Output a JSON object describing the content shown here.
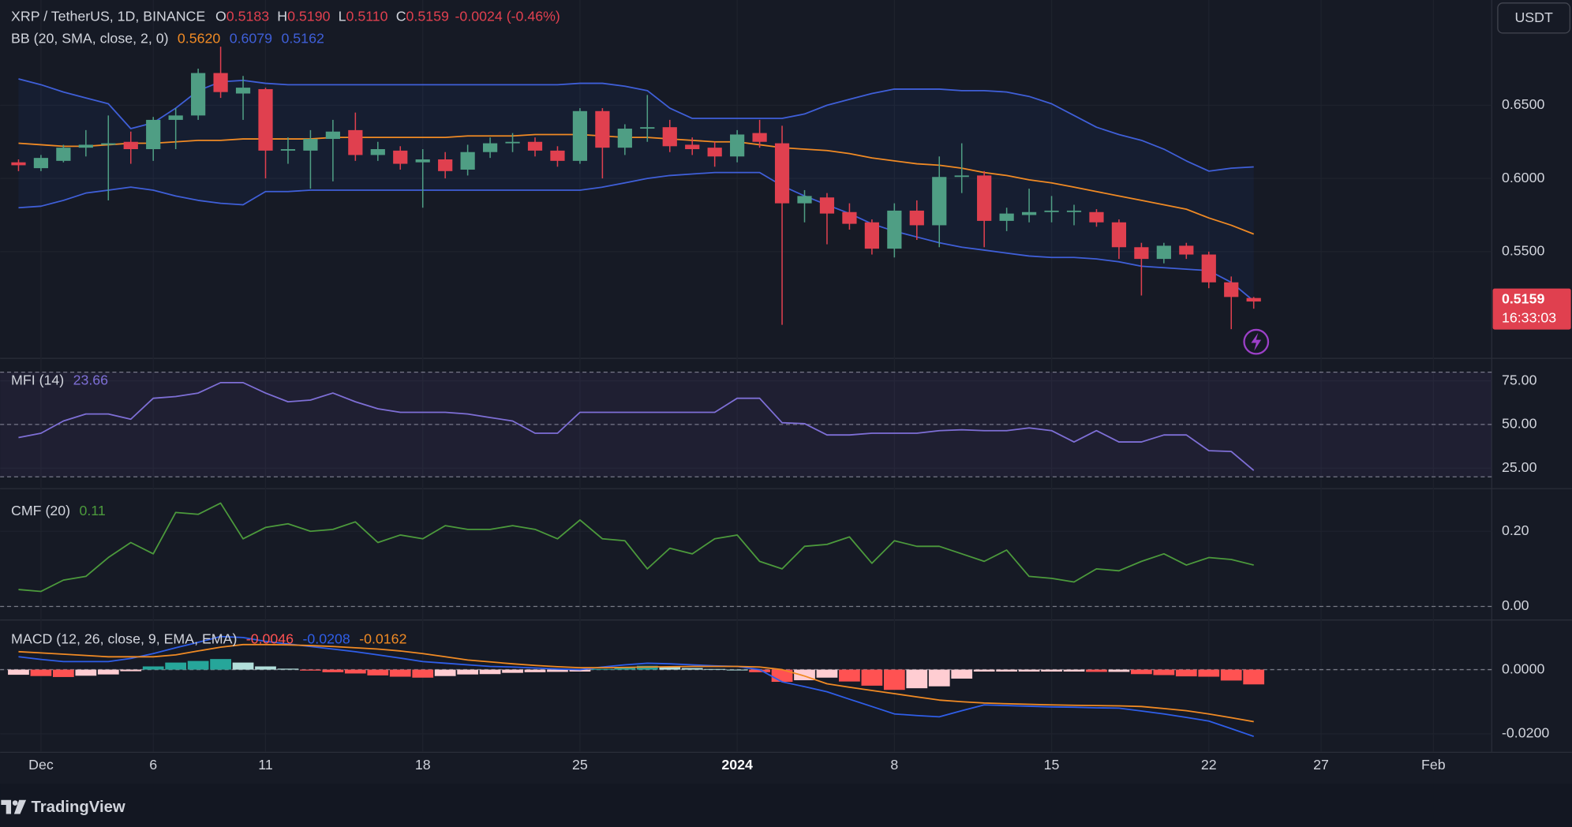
{
  "chart_data": [
    {
      "type": "candlestick",
      "title": "XRP / TetherUS, 1D, BINANCE",
      "legend": [
        {
          "key": "O",
          "value": "0.5183"
        },
        {
          "key": "H",
          "value": "0.5190"
        },
        {
          "key": "L",
          "value": "0.5110"
        },
        {
          "key": "C",
          "value": "0.5159"
        }
      ],
      "change": "-0.0024 (-0.46%)",
      "currency": "USDT",
      "countdown": "16:33:03",
      "up_color": "#4f9e84",
      "down_color": "#e0404f",
      "x": [
        "2023-11-30",
        "2023-12-01",
        "2023-12-02",
        "2023-12-03",
        "2023-12-04",
        "2023-12-05",
        "2023-12-06",
        "2023-12-07",
        "2023-12-08",
        "2023-12-09",
        "2023-12-10",
        "2023-12-11",
        "2023-12-12",
        "2023-12-13",
        "2023-12-14",
        "2023-12-15",
        "2023-12-16",
        "2023-12-17",
        "2023-12-18",
        "2023-12-19",
        "2023-12-20",
        "2023-12-21",
        "2023-12-22",
        "2023-12-23",
        "2023-12-24",
        "2023-12-25",
        "2023-12-26",
        "2023-12-27",
        "2023-12-28",
        "2023-12-29",
        "2023-12-30",
        "2023-12-31",
        "2024-01-01",
        "2024-01-02",
        "2024-01-03",
        "2024-01-04",
        "2024-01-05",
        "2024-01-06",
        "2024-01-07",
        "2024-01-08",
        "2024-01-09",
        "2024-01-10",
        "2024-01-11",
        "2024-01-12",
        "2024-01-13",
        "2024-01-14",
        "2024-01-15",
        "2024-01-16",
        "2024-01-17",
        "2024-01-18",
        "2024-01-19",
        "2024-01-20",
        "2024-01-21",
        "2024-01-22",
        "2024-01-23",
        "2024-01-24"
      ],
      "open": [
        0.611,
        0.607,
        0.612,
        0.621,
        0.623,
        0.625,
        0.62,
        0.64,
        0.643,
        0.672,
        0.658,
        0.661,
        0.619,
        0.619,
        0.627,
        0.633,
        0.616,
        0.619,
        0.611,
        0.613,
        0.606,
        0.618,
        0.624,
        0.625,
        0.619,
        0.612,
        0.646,
        0.621,
        0.634,
        0.635,
        0.623,
        0.621,
        0.615,
        0.631,
        0.624,
        0.583,
        0.587,
        0.577,
        0.57,
        0.552,
        0.578,
        0.568,
        0.601,
        0.602,
        0.571,
        0.575,
        0.577,
        0.577,
        0.577,
        0.57,
        0.553,
        0.545,
        0.554,
        0.548,
        0.529,
        0.5183
      ],
      "high": [
        0.613,
        0.616,
        0.623,
        0.633,
        0.643,
        0.632,
        0.642,
        0.648,
        0.675,
        0.69,
        0.67,
        0.662,
        0.628,
        0.633,
        0.64,
        0.645,
        0.625,
        0.622,
        0.62,
        0.618,
        0.623,
        0.628,
        0.631,
        0.628,
        0.622,
        0.648,
        0.648,
        0.637,
        0.657,
        0.64,
        0.628,
        0.625,
        0.633,
        0.64,
        0.636,
        0.592,
        0.59,
        0.583,
        0.572,
        0.583,
        0.585,
        0.615,
        0.624,
        0.605,
        0.58,
        0.593,
        0.588,
        0.582,
        0.579,
        0.572,
        0.556,
        0.556,
        0.556,
        0.55,
        0.533,
        0.519
      ],
      "low": [
        0.605,
        0.605,
        0.611,
        0.615,
        0.585,
        0.61,
        0.612,
        0.62,
        0.64,
        0.655,
        0.64,
        0.6,
        0.61,
        0.593,
        0.598,
        0.612,
        0.612,
        0.606,
        0.58,
        0.6,
        0.602,
        0.614,
        0.618,
        0.615,
        0.608,
        0.61,
        0.6,
        0.616,
        0.625,
        0.618,
        0.616,
        0.608,
        0.611,
        0.621,
        0.5,
        0.57,
        0.555,
        0.565,
        0.548,
        0.546,
        0.558,
        0.553,
        0.59,
        0.553,
        0.564,
        0.57,
        0.57,
        0.568,
        0.567,
        0.545,
        0.52,
        0.542,
        0.545,
        0.525,
        0.497,
        0.511
      ],
      "close": [
        0.609,
        0.614,
        0.621,
        0.623,
        0.624,
        0.62,
        0.64,
        0.643,
        0.672,
        0.659,
        0.662,
        0.619,
        0.62,
        0.627,
        0.632,
        0.616,
        0.62,
        0.61,
        0.613,
        0.605,
        0.618,
        0.624,
        0.625,
        0.619,
        0.612,
        0.646,
        0.621,
        0.634,
        0.635,
        0.622,
        0.62,
        0.615,
        0.63,
        0.625,
        0.583,
        0.588,
        0.576,
        0.569,
        0.552,
        0.578,
        0.568,
        0.601,
        0.602,
        0.571,
        0.576,
        0.577,
        0.578,
        0.578,
        0.57,
        0.553,
        0.545,
        0.554,
        0.548,
        0.529,
        0.519,
        0.5159
      ],
      "overlay": {
        "label": "BB (20, SMA, close, 2, 0)",
        "fill": "#2962ff",
        "series": [
          {
            "color": "#f08a24",
            "value_label": "0.5620",
            "values": [
              0.624,
              0.623,
              0.622,
              0.622,
              0.623,
              0.624,
              0.624,
              0.625,
              0.626,
              0.626,
              0.627,
              0.627,
              0.627,
              0.627,
              0.628,
              0.628,
              0.628,
              0.628,
              0.628,
              0.628,
              0.629,
              0.629,
              0.629,
              0.63,
              0.63,
              0.63,
              0.629,
              0.628,
              0.628,
              0.627,
              0.626,
              0.625,
              0.625,
              0.623,
              0.621,
              0.62,
              0.619,
              0.617,
              0.614,
              0.612,
              0.61,
              0.609,
              0.607,
              0.604,
              0.602,
              0.599,
              0.597,
              0.594,
              0.591,
              0.588,
              0.585,
              0.582,
              0.579,
              0.573,
              0.568,
              0.562
            ]
          },
          {
            "color": "#3f5fd8",
            "values": [
              0.668,
              0.664,
              0.659,
              0.655,
              0.651,
              0.634,
              0.638,
              0.648,
              0.66,
              0.666,
              0.667,
              0.665,
              0.664,
              0.664,
              0.664,
              0.664,
              0.664,
              0.664,
              0.664,
              0.664,
              0.664,
              0.664,
              0.664,
              0.664,
              0.664,
              0.665,
              0.665,
              0.663,
              0.66,
              0.648,
              0.641,
              0.641,
              0.641,
              0.641,
              0.641,
              0.644,
              0.65,
              0.654,
              0.658,
              0.661,
              0.661,
              0.661,
              0.66,
              0.66,
              0.659,
              0.656,
              0.651,
              0.643,
              0.635,
              0.63,
              0.626,
              0.62,
              0.612,
              0.605,
              0.607,
              0.6079
            ]
          },
          {
            "color": "#3f5fd8",
            "values": [
              0.58,
              0.581,
              0.585,
              0.59,
              0.592,
              0.594,
              0.592,
              0.588,
              0.585,
              0.583,
              0.582,
              0.591,
              0.591,
              0.592,
              0.592,
              0.592,
              0.592,
              0.592,
              0.592,
              0.592,
              0.592,
              0.592,
              0.592,
              0.592,
              0.592,
              0.592,
              0.594,
              0.597,
              0.6,
              0.602,
              0.603,
              0.604,
              0.604,
              0.604,
              0.595,
              0.588,
              0.582,
              0.576,
              0.569,
              0.564,
              0.56,
              0.556,
              0.553,
              0.551,
              0.549,
              0.547,
              0.546,
              0.546,
              0.545,
              0.543,
              0.54,
              0.539,
              0.538,
              0.537,
              0.529,
              0.5162
            ]
          }
        ]
      },
      "ylim": [
        0.4774,
        0.7219
      ],
      "yticks": [
        {
          "value": 0.65,
          "label": "0.6500"
        },
        {
          "value": 0.6,
          "label": "0.6000"
        },
        {
          "value": 0.55,
          "label": "0.5500"
        }
      ],
      "xlim": [
        "2023-11-29",
        "2024-02-04"
      ],
      "xticks": [
        {
          "value": "2023-12-01",
          "label": "Dec"
        },
        {
          "value": "2023-12-06",
          "label": "6"
        },
        {
          "value": "2023-12-11",
          "label": "11"
        },
        {
          "value": "2023-12-18",
          "label": "18"
        },
        {
          "value": "2023-12-25",
          "label": "25"
        },
        {
          "value": "2024-01-01",
          "label": "2024"
        },
        {
          "value": "2024-01-08",
          "label": "8"
        },
        {
          "value": "2024-01-15",
          "label": "15"
        },
        {
          "value": "2024-01-22",
          "label": "22"
        },
        {
          "value": "2024-01-27",
          "label": "27"
        },
        {
          "value": "2024-02-01",
          "label": "Feb"
        }
      ],
      "grid": true
    },
    {
      "type": "line",
      "title": "MFI (14)",
      "color": "#7e6fd6",
      "band_color": "#7e57c2",
      "values": [
        42.5,
        45,
        52,
        56,
        56,
        53,
        65,
        66,
        68,
        74,
        74,
        68,
        63,
        64,
        68,
        63,
        59,
        57,
        57,
        57,
        56,
        54,
        52,
        45,
        45,
        57,
        57,
        57,
        57,
        57,
        57,
        57,
        65,
        65,
        51,
        50.5,
        44,
        44,
        45,
        45,
        45,
        46.5,
        47,
        46.5,
        46.5,
        48,
        46.5,
        40,
        46.5,
        40,
        40,
        44,
        44,
        35,
        34.5,
        23.66
      ],
      "levels": [
        80,
        50,
        20
      ],
      "ylim": [
        13.5,
        87.6
      ],
      "yticks": [
        {
          "value": 75,
          "label": "75.00"
        },
        {
          "value": 50,
          "label": "50.00"
        },
        {
          "value": 25,
          "label": "25.00"
        }
      ],
      "grid": true
    },
    {
      "type": "line",
      "title": "CMF (20)",
      "color": "#4c9a3c",
      "values": [
        0.045,
        0.04,
        0.07,
        0.08,
        0.13,
        0.17,
        0.14,
        0.25,
        0.245,
        0.275,
        0.18,
        0.21,
        0.22,
        0.2,
        0.205,
        0.225,
        0.17,
        0.19,
        0.18,
        0.215,
        0.205,
        0.205,
        0.215,
        0.205,
        0.18,
        0.23,
        0.18,
        0.175,
        0.1,
        0.155,
        0.14,
        0.18,
        0.19,
        0.12,
        0.1,
        0.16,
        0.165,
        0.185,
        0.115,
        0.175,
        0.16,
        0.16,
        0.14,
        0.12,
        0.15,
        0.08,
        0.075,
        0.065,
        0.1,
        0.095,
        0.12,
        0.14,
        0.11,
        0.13,
        0.125,
        0.11
      ],
      "levels": [
        0
      ],
      "ylim": [
        -0.0347,
        0.312
      ],
      "yticks": [
        {
          "value": 0.2,
          "label": "0.20"
        },
        {
          "value": 0,
          "label": "0.00"
        }
      ],
      "grid": true
    },
    {
      "type": "macd",
      "title": "MACD (12, 26, close, 9, EMA, EMA)",
      "histogram": {
        "colors": [
          "#26a69a",
          "#b2dfdb",
          "#ffcdd2",
          "#ff5252"
        ],
        "values": [
          -0.0016,
          -0.002,
          -0.0023,
          -0.0019,
          -0.0015,
          -0.0005,
          0.001,
          0.0022,
          0.0027,
          0.0033,
          0.0022,
          0.001,
          0.0003,
          -0.0003,
          -0.0008,
          -0.0012,
          -0.0018,
          -0.0022,
          -0.0025,
          -0.002,
          -0.0015,
          -0.0014,
          -0.001,
          -0.0008,
          -0.0007,
          -0.0006,
          0.0002,
          0.0008,
          0.0012,
          0.0009,
          0.0005,
          0.0002,
          0,
          -0.0008,
          -0.0038,
          -0.0033,
          -0.0025,
          -0.0037,
          -0.005,
          -0.0063,
          -0.0058,
          -0.0052,
          -0.0028,
          -0.0006,
          -0.0006,
          -0.0006,
          -0.0006,
          -0.0006,
          -0.0007,
          -0.0007,
          -0.0014,
          -0.0017,
          -0.0021,
          -0.0022,
          -0.0034,
          -0.0046
        ]
      },
      "series": [
        {
          "color": "#2f5ee8",
          "values": [
            0.004,
            0.0032,
            0.0025,
            0.0025,
            0.0025,
            0.0035,
            0.005,
            0.0068,
            0.0085,
            0.0103,
            0.01,
            0.0088,
            0.008,
            0.0072,
            0.0064,
            0.0056,
            0.0046,
            0.0036,
            0.0025,
            0.002,
            0.0015,
            0.001,
            0.0008,
            0.0005,
            0.0002,
            0,
            0.0008,
            0.0015,
            0.002,
            0.0018,
            0.0015,
            0.0012,
            0.001,
            0,
            -0.0038,
            -0.0053,
            -0.0069,
            -0.0092,
            -0.0115,
            -0.0138,
            -0.0143,
            -0.0147,
            -0.0128,
            -0.011,
            -0.0112,
            -0.0114,
            -0.0116,
            -0.0117,
            -0.0119,
            -0.012,
            -0.0129,
            -0.0138,
            -0.0149,
            -0.016,
            -0.0184,
            -0.0208
          ]
        },
        {
          "color": "#f08a24",
          "values": [
            0.0056,
            0.0052,
            0.0048,
            0.0044,
            0.004,
            0.004,
            0.004,
            0.0046,
            0.0058,
            0.007,
            0.0078,
            0.0078,
            0.0077,
            0.0075,
            0.0072,
            0.0068,
            0.0064,
            0.0058,
            0.005,
            0.004,
            0.003,
            0.0024,
            0.0018,
            0.0013,
            0.0009,
            0.0006,
            0.0006,
            0.0007,
            0.0008,
            0.0009,
            0.001,
            0.001,
            0.001,
            0.0008,
            0,
            -0.002,
            -0.0044,
            -0.0055,
            -0.0065,
            -0.0075,
            -0.0085,
            -0.0095,
            -0.01,
            -0.0104,
            -0.0106,
            -0.0108,
            -0.011,
            -0.0111,
            -0.0112,
            -0.0113,
            -0.0115,
            -0.0121,
            -0.0128,
            -0.0138,
            -0.015,
            -0.0162
          ]
        }
      ],
      "levels": [
        0
      ],
      "ylim": [
        -0.0256,
        0.0153
      ],
      "yticks": [
        {
          "value": 0,
          "label": "0.0000"
        },
        {
          "value": -0.02,
          "label": "-0.0200"
        }
      ],
      "grid": true
    }
  ],
  "brand": "TradingView"
}
